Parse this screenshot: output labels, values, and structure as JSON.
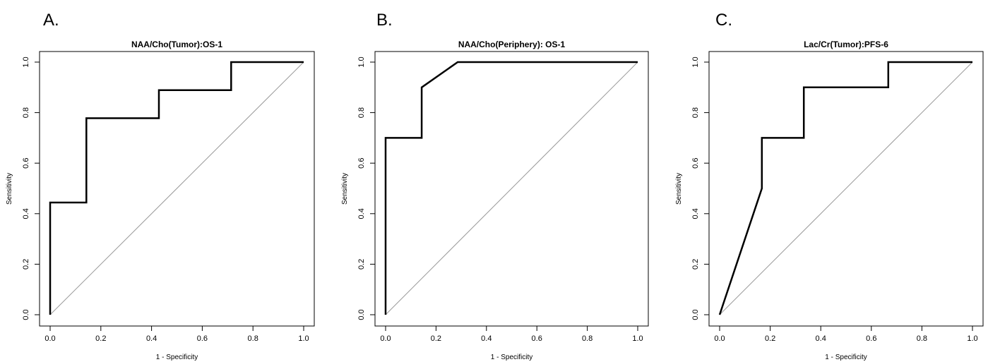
{
  "chart_data": [
    {
      "panel": "A.",
      "type": "line",
      "title": "NAA/Cho(Tumor):OS-1",
      "xlabel": "1 - Specificity",
      "ylabel": "Sensitivity",
      "xlim": [
        0,
        1
      ],
      "ylim": [
        0,
        1
      ],
      "xticks": [
        "0.0",
        "0.2",
        "0.4",
        "0.6",
        "0.8",
        "1.0"
      ],
      "yticks": [
        "0.0",
        "0.2",
        "0.4",
        "0.6",
        "0.8",
        "1.0"
      ],
      "grid": false,
      "reference_line": [
        [
          0,
          0
        ],
        [
          1,
          1
        ]
      ],
      "x": [
        0.0,
        0.0,
        0.143,
        0.143,
        0.429,
        0.429,
        0.714,
        0.714,
        1.0
      ],
      "y": [
        0.0,
        0.444,
        0.444,
        0.778,
        0.778,
        0.889,
        0.889,
        1.0,
        1.0
      ]
    },
    {
      "panel": "B.",
      "type": "line",
      "title": "NAA/Cho(Periphery): OS-1",
      "xlabel": "1 - Specificity",
      "ylabel": "Sensitivity",
      "xlim": [
        0,
        1
      ],
      "ylim": [
        0,
        1
      ],
      "xticks": [
        "0.0",
        "0.2",
        "0.4",
        "0.6",
        "0.8",
        "1.0"
      ],
      "yticks": [
        "0.0",
        "0.2",
        "0.4",
        "0.6",
        "0.8",
        "1.0"
      ],
      "grid": false,
      "reference_line": [
        [
          0,
          0
        ],
        [
          1,
          1
        ]
      ],
      "x": [
        0.0,
        0.0,
        0.143,
        0.143,
        0.286,
        1.0
      ],
      "y": [
        0.0,
        0.7,
        0.7,
        0.9,
        1.0,
        1.0
      ]
    },
    {
      "panel": "C.",
      "type": "line",
      "title": "Lac/Cr(Tumor):PFS-6",
      "xlabel": "1 - Specificity",
      "ylabel": "Sensitivity",
      "xlim": [
        0,
        1
      ],
      "ylim": [
        0,
        1
      ],
      "xticks": [
        "0.0",
        "0.2",
        "0.4",
        "0.6",
        "0.8",
        "1.0"
      ],
      "yticks": [
        "0.0",
        "0.2",
        "0.4",
        "0.6",
        "0.8",
        "1.0"
      ],
      "grid": false,
      "reference_line": [
        [
          0,
          0
        ],
        [
          1,
          1
        ]
      ],
      "x": [
        0.0,
        0.167,
        0.167,
        0.333,
        0.333,
        0.667,
        0.667,
        1.0
      ],
      "y": [
        0.0,
        0.5,
        0.7,
        0.7,
        0.9,
        0.9,
        1.0,
        1.0
      ]
    }
  ],
  "colors": {
    "curve": "#000000",
    "reference": "#9a9a9a",
    "frame": "#000000"
  }
}
